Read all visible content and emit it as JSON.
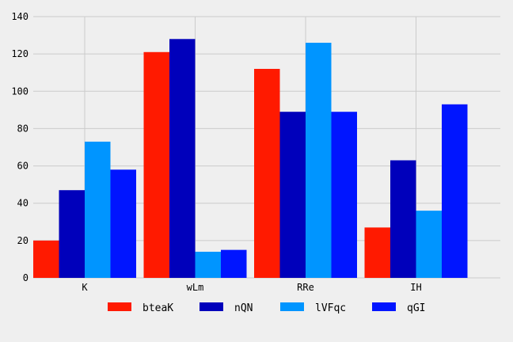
{
  "chart_data": {
    "type": "bar",
    "categories": [
      "K",
      "wLm",
      "RRe",
      "IH"
    ],
    "series": [
      {
        "name": "bteaK",
        "color": "#ff1a00",
        "values": [
          20,
          121,
          112,
          27
        ]
      },
      {
        "name": "nQN",
        "color": "#0000bb",
        "values": [
          47,
          128,
          89,
          63
        ]
      },
      {
        "name": "lVFqc",
        "color": "#0095ff",
        "values": [
          73,
          14,
          126,
          36
        ]
      },
      {
        "name": "qGI",
        "color": "#0015ff",
        "values": [
          58,
          15,
          89,
          93
        ]
      }
    ],
    "yticks": [
      0,
      20,
      40,
      60,
      80,
      100,
      120,
      140
    ],
    "ylim": [
      0,
      140
    ],
    "grid": true,
    "legend": "bottom-center"
  }
}
